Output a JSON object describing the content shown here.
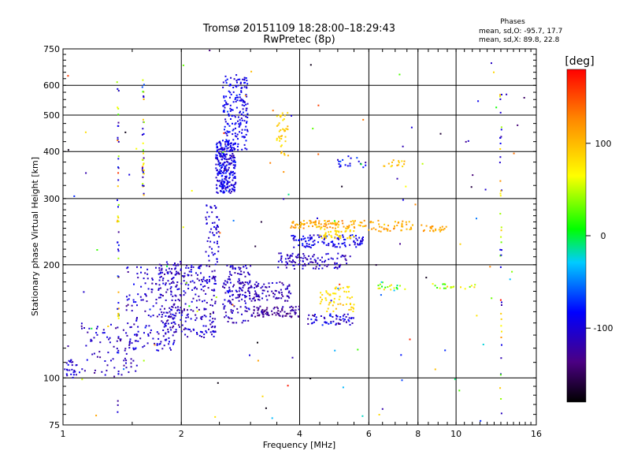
{
  "header": {
    "title_line1": "Tromsø 20151109 18:28:00–18:29:43",
    "title_line2": "RwPretec (8p)",
    "phase_title": "Phases",
    "phase_stat_O": "mean, sd,O:  -95.7, 17.7",
    "phase_stat_X": "mean, sd,X:  89.8, 22.8"
  },
  "chart_data": {
    "type": "scatter",
    "xlabel": "Frequency [MHz]",
    "ylabel": "Stationary phase Virtual Height [km]",
    "x_scale": "log",
    "y_scale": "log",
    "xlim": [
      1,
      16
    ],
    "ylim": [
      75,
      750
    ],
    "x_ticks": [
      {
        "value": 1,
        "label": "1"
      },
      {
        "value": 2,
        "label": "2"
      },
      {
        "value": 4,
        "label": "4"
      },
      {
        "value": 6,
        "label": "6"
      },
      {
        "value": 8,
        "label": "8"
      },
      {
        "value": 10,
        "label": "10"
      },
      {
        "value": 16,
        "label": "16"
      }
    ],
    "y_ticks": [
      {
        "value": 75,
        "label": "75"
      },
      {
        "value": 100,
        "label": "100"
      },
      {
        "value": 200,
        "label": "200"
      },
      {
        "value": 300,
        "label": "300"
      },
      {
        "value": 400,
        "label": "400"
      },
      {
        "value": 500,
        "label": "500"
      },
      {
        "value": 600,
        "label": "600"
      },
      {
        "value": 750,
        "label": "750"
      }
    ],
    "grid_x": [
      2,
      4,
      6,
      8,
      10
    ],
    "grid_y": [
      100,
      200,
      300,
      400,
      500,
      600
    ],
    "colorbar": {
      "label": "[deg]",
      "range": [
        -180,
        180
      ],
      "ticks": [
        {
          "value": 100,
          "label": "100"
        },
        {
          "value": 0,
          "label": "0"
        },
        {
          "value": -100,
          "label": "-100"
        }
      ]
    },
    "clusters": [
      {
        "x": [
          1.0,
          1.1
        ],
        "y": [
          100,
          112
        ],
        "phase": [
          -105,
          15
        ],
        "n": 25
      },
      {
        "x": [
          1.1,
          1.55
        ],
        "y": [
          100,
          140
        ],
        "phase": [
          -110,
          20
        ],
        "n": 80
      },
      {
        "x": [
          1.45,
          1.95
        ],
        "y": [
          118,
          200
        ],
        "phase": [
          -105,
          20
        ],
        "n": 170
      },
      {
        "x": [
          1.75,
          2.05
        ],
        "y": [
          130,
          205
        ],
        "phase": [
          -110,
          20
        ],
        "n": 130
      },
      {
        "x": [
          2.05,
          2.45
        ],
        "y": [
          128,
          200
        ],
        "phase": [
          -110,
          20
        ],
        "n": 150
      },
      {
        "x": [
          2.3,
          2.5
        ],
        "y": [
          200,
          290
        ],
        "phase": [
          -100,
          15
        ],
        "n": 55
      },
      {
        "x": [
          2.45,
          2.75
        ],
        "y": [
          310,
          430
        ],
        "phase": [
          -95,
          20
        ],
        "n": 260
      },
      {
        "x": [
          2.55,
          2.95
        ],
        "y": [
          400,
          640
        ],
        "phase": [
          -90,
          20
        ],
        "n": 180
      },
      {
        "x": [
          2.55,
          3.0
        ],
        "y": [
          140,
          200
        ],
        "phase": [
          -110,
          20
        ],
        "n": 120
      },
      {
        "x": [
          2.8,
          3.8
        ],
        "y": [
          160,
          180
        ],
        "phase": [
          -115,
          15
        ],
        "n": 110
      },
      {
        "x": [
          3.0,
          4.0
        ],
        "y": [
          145,
          155
        ],
        "phase": [
          -125,
          15
        ],
        "n": 90
      },
      {
        "x": [
          3.5,
          5.4
        ],
        "y": [
          195,
          215
        ],
        "phase": [
          -110,
          20
        ],
        "n": 110
      },
      {
        "x": [
          3.8,
          5.8
        ],
        "y": [
          222,
          240
        ],
        "phase": [
          -95,
          20
        ],
        "n": 110
      },
      {
        "x": [
          3.8,
          5.9
        ],
        "y": [
          250,
          262
        ],
        "phase": [
          110,
          20
        ],
        "n": 100
      },
      {
        "x": [
          4.5,
          5.5
        ],
        "y": [
          235,
          250
        ],
        "phase": [
          85,
          10
        ],
        "n": 45
      },
      {
        "x": [
          4.5,
          5.5
        ],
        "y": [
          150,
          175
        ],
        "phase": [
          85,
          15
        ],
        "n": 60
      },
      {
        "x": [
          4.2,
          5.5
        ],
        "y": [
          138,
          148
        ],
        "phase": [
          -100,
          30
        ],
        "n": 60
      },
      {
        "x": [
          3.5,
          3.75
        ],
        "y": [
          390,
          510
        ],
        "phase": [
          90,
          15
        ],
        "n": 40
      },
      {
        "x": [
          5.9,
          7.8
        ],
        "y": [
          245,
          262
        ],
        "phase": [
          110,
          20
        ],
        "n": 45
      },
      {
        "x": [
          8.0,
          9.5
        ],
        "y": [
          245,
          255
        ],
        "phase": [
          110,
          15
        ],
        "n": 25
      },
      {
        "x": [
          6.3,
          7.5
        ],
        "y": [
          170,
          180
        ],
        "phase": [
          30,
          60
        ],
        "n": 20
      },
      {
        "x": [
          8.5,
          11.2
        ],
        "y": [
          172,
          178
        ],
        "phase": [
          60,
          50
        ],
        "n": 20
      },
      {
        "x": [
          5.0,
          6.0
        ],
        "y": [
          360,
          390
        ],
        "phase": [
          -90,
          30
        ],
        "n": 20
      },
      {
        "x": [
          6.5,
          7.5
        ],
        "y": [
          365,
          380
        ],
        "phase": [
          100,
          20
        ],
        "n": 15
      }
    ],
    "vertical_traces": [
      {
        "x": 1.38,
        "y": [
          80,
          620
        ],
        "n": 60
      },
      {
        "x": 1.6,
        "y": [
          300,
          620
        ],
        "n": 40
      },
      {
        "x": 13.0,
        "y": [
          80,
          600
        ],
        "n": 45
      }
    ],
    "scattered_points": 120
  }
}
